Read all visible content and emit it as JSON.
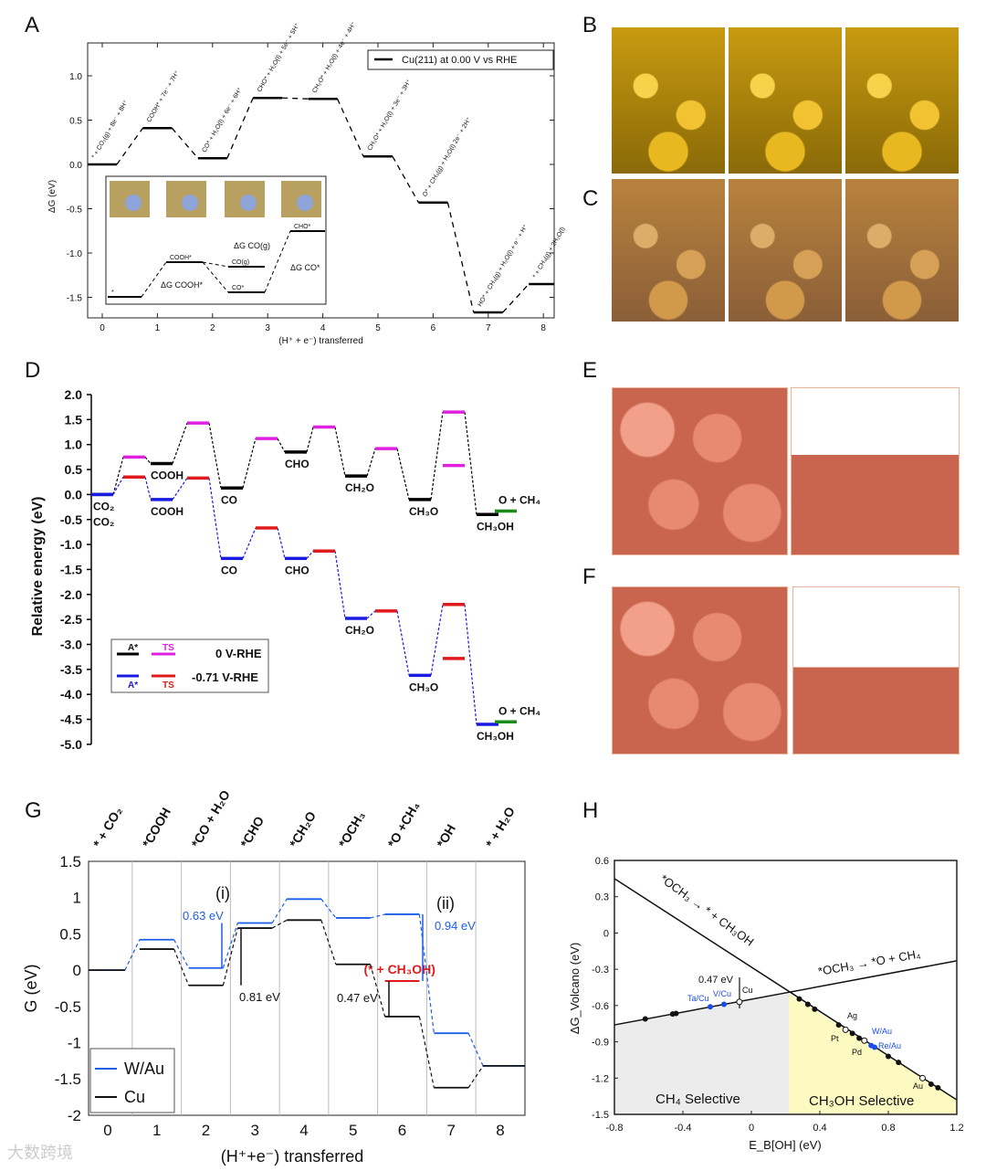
{
  "panels": {
    "A": "A",
    "B": "B",
    "C": "C",
    "D": "D",
    "E": "E",
    "F": "F",
    "G": "G",
    "H": "H"
  },
  "watermark": "大数跨境",
  "chart_data": [
    {
      "id": "A",
      "type": "line",
      "title": "",
      "legend": "Cu(211) at 0.00 V vs RHE",
      "legend_position": "top-right",
      "xlabel": "(H⁺ + e⁻) transferred",
      "ylabel": "ΔG (eV)",
      "xlim": [
        -0.3,
        8.3
      ],
      "ylim": [
        -1.73,
        1.37
      ],
      "xticks": [
        0,
        1,
        2,
        3,
        4,
        5,
        6,
        7,
        8
      ],
      "yticks": [
        1.0,
        0.5,
        0.0,
        -0.5,
        -1.0,
        -1.5
      ],
      "x": [
        0,
        1,
        2,
        3,
        4,
        5,
        6,
        7,
        8
      ],
      "values": [
        0.0,
        0.41,
        0.07,
        0.75,
        0.74,
        0.09,
        -0.43,
        -1.67,
        -1.35
      ],
      "state_labels": [
        "* + CO₂(g) + 8e⁻ + 8H⁺",
        "COOH* + 7e⁻ + 7H⁺",
        "CO* + H₂O(l) + 6e⁻ + 6H⁺",
        "CHO* + H₂O(l) + 5e⁻ + 5H⁺",
        "CH₂O* + H₂O(l) + 4e⁻ + 4H⁺",
        "CH₃O* + H₂O(l) + 3e⁻ + 3H⁺",
        "O* + CH₄(g) + H₂O(l) 2e⁻ + 2H⁺",
        "HO* + CH₄(g) + H₂O(l) + e⁻ + H⁺",
        "* + CH₄(g) + 2H₂O(l)"
      ],
      "inset": {
        "labels": [
          "*",
          "COOH*",
          "CO(g)",
          "CO*",
          "CHO*"
        ],
        "annotations": [
          "ΔG COOH*",
          "ΔG CO(g)",
          "ΔG CO*"
        ]
      }
    },
    {
      "id": "D",
      "type": "line",
      "ylabel": "Relative energy (eV)",
      "ylim": [
        -5.0,
        2.0
      ],
      "yticks": [
        2.0,
        1.5,
        1.0,
        0.5,
        0.0,
        -0.5,
        -1.0,
        -1.5,
        -2.0,
        -2.5,
        -3.0,
        -3.5,
        -4.0,
        -4.5,
        -5.0
      ],
      "legend": {
        "a_label": "A*",
        "ts_label": "TS",
        "v0": "0 V-RHE",
        "v1": "-0.71 V-RHE"
      },
      "series": [
        {
          "name": "0 V-RHE",
          "color": "#000000",
          "ts_color": "#e020e0",
          "states": [
            {
              "label": "CO₂",
              "v": 0.0
            },
            {
              "label": "COOH",
              "v": 0.62
            },
            {
              "label": "CO",
              "v": 0.13
            },
            {
              "label": "CHO",
              "v": 0.85
            },
            {
              "label": "CH₂O",
              "v": 0.37
            },
            {
              "label": "CH₃O",
              "v": -0.1
            },
            {
              "label": "CH₃OH",
              "v": -0.4
            }
          ],
          "ts": [
            0.75,
            1.43,
            1.12,
            1.35,
            0.92,
            1.65
          ]
        },
        {
          "name": "-0.71 V-RHE",
          "color": "#1a1ae0",
          "ts_color": "#e01a1a",
          "states": [
            {
              "label": "CO₂",
              "v": 0.0
            },
            {
              "label": "COOH",
              "v": -0.1
            },
            {
              "label": "CO",
              "v": -1.28
            },
            {
              "label": "CHO",
              "v": -1.28
            },
            {
              "label": "CH₂O",
              "v": -2.48
            },
            {
              "label": "CH₃O",
              "v": -3.62
            },
            {
              "label": "CH₃OH",
              "v": -4.6
            }
          ],
          "ts": [
            0.35,
            0.33,
            -0.67,
            -1.13,
            -2.33,
            -2.2
          ]
        }
      ],
      "extra_ts": [
        {
          "color": "#e020e0",
          "v": 0.58
        },
        {
          "color": "#e01a1a",
          "v": -3.28
        }
      ],
      "products": [
        {
          "label": "O + CH₄",
          "v": -0.33
        },
        {
          "label": "O + CH₄",
          "v": -4.55
        }
      ]
    },
    {
      "id": "G",
      "type": "line",
      "xlabel": "(H⁺+e⁻) transferred",
      "ylabel": "G (eV)",
      "xlim": [
        -0.4,
        8.5
      ],
      "ylim": [
        -2,
        1.5
      ],
      "xticks": [
        0,
        1,
        2,
        3,
        4,
        5,
        6,
        7,
        8
      ],
      "yticks": [
        1.5,
        1,
        0.5,
        0,
        -0.5,
        -1,
        -1.5,
        -2
      ],
      "top_labels": [
        "* + CO₂",
        "*COOH",
        "*CO + H₂O",
        "*CHO",
        "*CH₂O",
        "*OCH₃",
        "*O +CH₄",
        "*OH",
        "* + H₂O"
      ],
      "red_label": "(* + CH₃OH)",
      "series": [
        {
          "name": "W/Au",
          "color": "#1a5ee8",
          "values": [
            0,
            0.42,
            0.03,
            0.65,
            0.98,
            0.72,
            0.77,
            -0.87,
            -1.32
          ]
        },
        {
          "name": "Cu",
          "color": "#111111",
          "values": [
            0,
            0.29,
            -0.21,
            0.58,
            0.69,
            0.08,
            -0.64,
            -1.62,
            -1.32
          ]
        }
      ],
      "red_level": -0.15,
      "annotations": [
        {
          "text": "(i)"
        },
        {
          "text": "(ii)"
        },
        {
          "text": "0.63 eV"
        },
        {
          "text": "0.81 eV"
        },
        {
          "text": "0.47 eV"
        },
        {
          "text": "0.94 eV"
        }
      ]
    },
    {
      "id": "H",
      "type": "scatter",
      "xlabel": "E_B[OH] (eV)",
      "ylabel": "ΔG_Volcano (eV)",
      "xlim": [
        -0.8,
        1.2
      ],
      "ylim": [
        -1.5,
        0.6
      ],
      "xticks": [
        -0.8,
        -0.4,
        0,
        0.4,
        0.8,
        1.2
      ],
      "yticks": [
        0.6,
        0.3,
        0,
        -0.3,
        -0.6,
        -0.9,
        -1.2,
        -1.5
      ],
      "lines": [
        {
          "label": "*OCH₃ → * + CH₃OH",
          "x": [
            -0.8,
            1.2
          ],
          "y": [
            0.45,
            -1.38
          ]
        },
        {
          "label": "*OCH₃ → *O + CH₄",
          "x": [
            -0.8,
            1.2
          ],
          "y": [
            -0.76,
            -0.23
          ]
        }
      ],
      "regions": [
        {
          "label": "CH₄ Selective",
          "x": [
            -0.8,
            0.22
          ],
          "color": "#ececec"
        },
        {
          "label": "CH₃OH Selective",
          "x": [
            0.22,
            1.2
          ],
          "color": "#fcfac0"
        }
      ],
      "gap_label": "0.47 eV",
      "points": [
        {
          "x": -0.62,
          "y": -0.71,
          "label": "",
          "kind": "black"
        },
        {
          "x": -0.46,
          "y": -0.67,
          "label": "",
          "kind": "black"
        },
        {
          "x": -0.44,
          "y": -0.665,
          "label": "",
          "kind": "black"
        },
        {
          "x": -0.24,
          "y": -0.61,
          "label": "Ta/Cu",
          "kind": "blue"
        },
        {
          "x": -0.16,
          "y": -0.59,
          "label": "V/Cu",
          "kind": "blue"
        },
        {
          "x": -0.07,
          "y": -0.57,
          "label": "Cu",
          "kind": "open"
        },
        {
          "x": 0.28,
          "y": -0.545,
          "label": "",
          "kind": "black"
        },
        {
          "x": 0.33,
          "y": -0.59,
          "label": "",
          "kind": "black"
        },
        {
          "x": 0.37,
          "y": -0.63,
          "label": "",
          "kind": "black"
        },
        {
          "x": 0.51,
          "y": -0.76,
          "label": "",
          "kind": "black"
        },
        {
          "x": 0.55,
          "y": -0.8,
          "label": "Ag",
          "kind": "open"
        },
        {
          "x": 0.59,
          "y": -0.83,
          "label": "Pt",
          "kind": "black"
        },
        {
          "x": 0.63,
          "y": -0.87,
          "label": "",
          "kind": "black"
        },
        {
          "x": 0.66,
          "y": -0.89,
          "label": "Pd",
          "kind": "open"
        },
        {
          "x": 0.7,
          "y": -0.93,
          "label": "W/Au",
          "kind": "blue"
        },
        {
          "x": 0.72,
          "y": -0.945,
          "label": "Re/Au",
          "kind": "blue"
        },
        {
          "x": 0.8,
          "y": -1.02,
          "label": "",
          "kind": "black"
        },
        {
          "x": 0.86,
          "y": -1.07,
          "label": "",
          "kind": "black"
        },
        {
          "x": 1.0,
          "y": -1.2,
          "label": "Au",
          "kind": "open"
        },
        {
          "x": 1.05,
          "y": -1.25,
          "label": "",
          "kind": "black"
        },
        {
          "x": 1.09,
          "y": -1.28,
          "label": "",
          "kind": "black"
        }
      ]
    }
  ]
}
